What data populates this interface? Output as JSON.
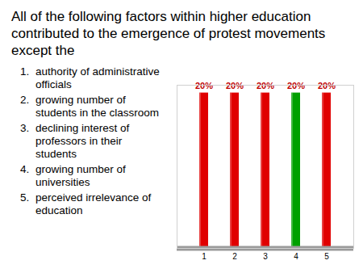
{
  "chart_data": {
    "type": "bar",
    "title": "All of the following factors within higher education contributed to the emergence of protest movements except the",
    "annotations": [
      "authority of administrative officials",
      "growing number of students in the classroom",
      "declining interest of professors in their students",
      "growing number of universities",
      "perceived irrelevance of education"
    ],
    "categories": [
      "1",
      "2",
      "3",
      "4",
      "5"
    ],
    "values": [
      20,
      20,
      20,
      20,
      20
    ],
    "value_labels": [
      "20%",
      "20%",
      "20%",
      "20%",
      "20%"
    ],
    "colors": [
      "#e00000",
      "#e00000",
      "#e00000",
      "#00a000",
      "#e00000"
    ],
    "ylim": [
      0,
      21
    ],
    "yticks": [],
    "data_labels": true,
    "tick_labels": "x",
    "grid": false
  }
}
